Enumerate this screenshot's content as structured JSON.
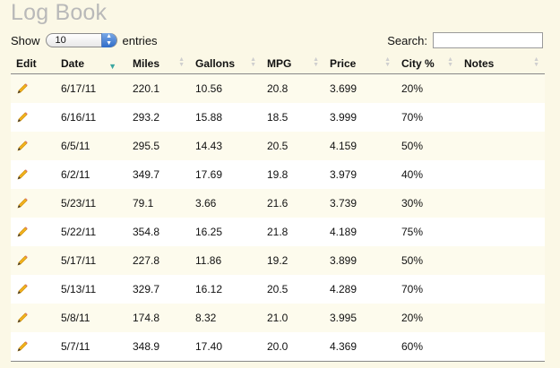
{
  "title": "Log Book",
  "controls": {
    "show_label": "Show",
    "entries_label": "entries",
    "page_size": "10",
    "search_label": "Search:",
    "search_value": ""
  },
  "columns": [
    "Edit",
    "Date",
    "Miles",
    "Gallons",
    "MPG",
    "Price",
    "City %",
    "Notes"
  ],
  "sorted_column": "Date",
  "icons": {
    "edit": "pencil-icon"
  },
  "rows": [
    {
      "date": "6/17/11",
      "miles": "220.1",
      "gallons": "10.56",
      "mpg": "20.8",
      "price": "3.699",
      "city": "20%",
      "notes": ""
    },
    {
      "date": "6/16/11",
      "miles": "293.2",
      "gallons": "15.88",
      "mpg": "18.5",
      "price": "3.999",
      "city": "70%",
      "notes": ""
    },
    {
      "date": "6/5/11",
      "miles": "295.5",
      "gallons": "14.43",
      "mpg": "20.5",
      "price": "4.159",
      "city": "50%",
      "notes": ""
    },
    {
      "date": "6/2/11",
      "miles": "349.7",
      "gallons": "17.69",
      "mpg": "19.8",
      "price": "3.979",
      "city": "40%",
      "notes": ""
    },
    {
      "date": "5/23/11",
      "miles": "79.1",
      "gallons": "3.66",
      "mpg": "21.6",
      "price": "3.739",
      "city": "30%",
      "notes": ""
    },
    {
      "date": "5/22/11",
      "miles": "354.8",
      "gallons": "16.25",
      "mpg": "21.8",
      "price": "4.189",
      "city": "75%",
      "notes": ""
    },
    {
      "date": "5/17/11",
      "miles": "227.8",
      "gallons": "11.86",
      "mpg": "19.2",
      "price": "3.899",
      "city": "50%",
      "notes": ""
    },
    {
      "date": "5/13/11",
      "miles": "329.7",
      "gallons": "16.12",
      "mpg": "20.5",
      "price": "4.289",
      "city": "70%",
      "notes": ""
    },
    {
      "date": "5/8/11",
      "miles": "174.8",
      "gallons": "8.32",
      "mpg": "21.0",
      "price": "3.995",
      "city": "20%",
      "notes": ""
    },
    {
      "date": "5/7/11",
      "miles": "348.9",
      "gallons": "17.40",
      "mpg": "20.0",
      "price": "4.369",
      "city": "60%",
      "notes": ""
    }
  ]
}
